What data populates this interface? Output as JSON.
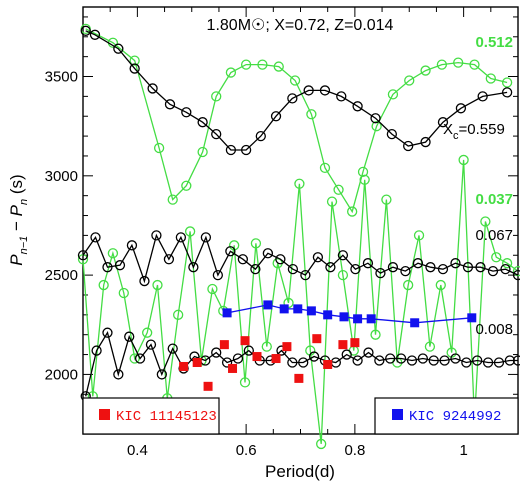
{
  "chart_data": {
    "type": "line",
    "title": "1.80M☉; X=0.72, Z=0.014",
    "xlabel": "Period(d)",
    "ylabel": "P_{n-1} − P_n (s)",
    "xlim": [
      0.3,
      1.1
    ],
    "ylim": [
      1700,
      3850
    ],
    "xticks": [
      0.4,
      0.6,
      0.8,
      1.0
    ],
    "xtick_labels": [
      "0.4",
      "0.6",
      "0.8",
      "1"
    ],
    "yticks": [
      2000,
      2500,
      3000,
      3500
    ],
    "ytick_labels": [
      "2000",
      "2500",
      "3000",
      "3500"
    ],
    "grid": false,
    "colors": {
      "black": "#000000",
      "green": "#44dd44",
      "red": "#ee1111",
      "blue": "#1111ee"
    },
    "annotations": [
      {
        "text": "0.512",
        "color": "#44dd44",
        "series": "green-upper"
      },
      {
        "text": "X",
        "sub": "c",
        "after": "=0.559",
        "color": "#000000",
        "series": "black-upper"
      },
      {
        "text": "0.037",
        "color": "#44dd44",
        "series": "green-lower"
      },
      {
        "text": "0.067",
        "color": "#000000",
        "series": "black-middle"
      },
      {
        "text": "0.008",
        "color": "#000000",
        "series": "black-lower"
      }
    ],
    "legend": [
      {
        "label": "KIC 11145123",
        "color": "#ee1111",
        "position": "bottom-left"
      },
      {
        "label": "KIC 9244992",
        "color": "#1111ee",
        "position": "bottom-right"
      }
    ],
    "series": [
      {
        "id": "black-upper",
        "color": "#000000",
        "marker": "circle",
        "line": true,
        "x": [
          0.305,
          0.322,
          0.365,
          0.395,
          0.428,
          0.46,
          0.49,
          0.52,
          0.545,
          0.572,
          0.6,
          0.627,
          0.655,
          0.685,
          0.715,
          0.745,
          0.775,
          0.805,
          0.838,
          0.868,
          0.898,
          0.93,
          0.962,
          0.995,
          1.035,
          1.08
        ],
        "y": [
          3730,
          3710,
          3640,
          3540,
          3440,
          3360,
          3320,
          3270,
          3210,
          3130,
          3130,
          3200,
          3300,
          3390,
          3430,
          3430,
          3400,
          3350,
          3290,
          3210,
          3150,
          3170,
          3270,
          3340,
          3400,
          3420
        ]
      },
      {
        "id": "green-upper",
        "color": "#44dd44",
        "marker": "circle",
        "line": true,
        "x": [
          0.305,
          0.355,
          0.395,
          0.44,
          0.465,
          0.49,
          0.52,
          0.545,
          0.572,
          0.6,
          0.63,
          0.66,
          0.69,
          0.72,
          0.745,
          0.77,
          0.795,
          0.815,
          0.84,
          0.87,
          0.9,
          0.93,
          0.96,
          0.99,
          1.02,
          1.05,
          1.08
        ],
        "y": [
          3740,
          3670,
          3580,
          3140,
          2880,
          2950,
          3120,
          3400,
          3520,
          3560,
          3560,
          3550,
          3480,
          3310,
          3040,
          2930,
          2820,
          3020,
          3250,
          3410,
          3480,
          3530,
          3560,
          3570,
          3560,
          3490,
          3470
        ]
      },
      {
        "id": "green-lower",
        "color": "#44dd44",
        "marker": "circle",
        "line": true,
        "x": [
          0.3,
          0.318,
          0.338,
          0.355,
          0.375,
          0.395,
          0.418,
          0.437,
          0.455,
          0.475,
          0.497,
          0.518,
          0.538,
          0.558,
          0.578,
          0.598,
          0.618,
          0.638,
          0.658,
          0.678,
          0.698,
          0.718,
          0.738,
          0.758,
          0.778,
          0.798,
          0.818,
          0.838,
          0.858,
          0.878,
          0.898,
          0.918,
          0.938,
          0.958,
          0.978,
          1.0,
          1.02,
          1.04,
          1.06,
          1.08,
          1.1
        ],
        "y": [
          2580,
          1890,
          2450,
          2610,
          2410,
          2080,
          2210,
          2450,
          1880,
          2300,
          2720,
          2070,
          2430,
          2320,
          2650,
          1960,
          2660,
          2140,
          2560,
          2360,
          2960,
          2120,
          1650,
          2870,
          2500,
          2120,
          2980,
          2200,
          2880,
          2060,
          2450,
          2700,
          2140,
          2450,
          2110,
          3080,
          1770,
          2770,
          2590,
          2560,
          2520
        ]
      },
      {
        "id": "black-middle",
        "color": "#000000",
        "marker": "circle",
        "line": true,
        "x": [
          0.3,
          0.323,
          0.345,
          0.368,
          0.39,
          0.413,
          0.435,
          0.458,
          0.48,
          0.503,
          0.526,
          0.548,
          0.571,
          0.594,
          0.617,
          0.64,
          0.663,
          0.686,
          0.709,
          0.732,
          0.755,
          0.778,
          0.801,
          0.824,
          0.847,
          0.87,
          0.893,
          0.916,
          0.939,
          0.962,
          0.985,
          1.008,
          1.031,
          1.054,
          1.077,
          1.1
        ],
        "y": [
          2600,
          2690,
          2540,
          2550,
          2650,
          2470,
          2700,
          2580,
          2690,
          2540,
          2690,
          2500,
          2620,
          2580,
          2530,
          2610,
          2580,
          2530,
          2500,
          2590,
          2540,
          2600,
          2530,
          2560,
          2510,
          2540,
          2520,
          2560,
          2540,
          2530,
          2560,
          2540,
          2540,
          2520,
          2530,
          2500
        ]
      },
      {
        "id": "black-lower",
        "color": "#000000",
        "marker": "circle",
        "line": true,
        "x": [
          0.305,
          0.325,
          0.345,
          0.365,
          0.385,
          0.405,
          0.425,
          0.445,
          0.465,
          0.485,
          0.505,
          0.525,
          0.545,
          0.565,
          0.585,
          0.605,
          0.625,
          0.645,
          0.665,
          0.685,
          0.705,
          0.725,
          0.745,
          0.765,
          0.785,
          0.805,
          0.825,
          0.845,
          0.865,
          0.885,
          0.905,
          0.925,
          0.945,
          0.965,
          0.985,
          1.005,
          1.025,
          1.045,
          1.065,
          1.085,
          1.1
        ],
        "y": [
          1890,
          2120,
          2210,
          2000,
          2190,
          2080,
          2150,
          2000,
          2130,
          2030,
          2090,
          2070,
          2110,
          2060,
          2080,
          2120,
          2070,
          2070,
          2120,
          2060,
          2060,
          2090,
          2070,
          2060,
          2100,
          2070,
          2110,
          2070,
          2080,
          2080,
          2070,
          2080,
          2070,
          2070,
          2080,
          2060,
          2070,
          2060,
          2060,
          2070,
          2070
        ]
      },
      {
        "id": "kic-9244992",
        "name": "KIC 9244992",
        "color": "#1111ee",
        "marker": "square",
        "line": true,
        "x": [
          0.565,
          0.64,
          0.67,
          0.695,
          0.72,
          0.75,
          0.78,
          0.805,
          0.83,
          0.91,
          1.015
        ],
        "y": [
          2310,
          2350,
          2330,
          2330,
          2320,
          2300,
          2290,
          2280,
          2280,
          2260,
          2285
        ]
      },
      {
        "id": "kic-11145123",
        "name": "KIC 11145123",
        "color": "#ee1111",
        "marker": "square",
        "line": false,
        "x": [
          0.485,
          0.51,
          0.53,
          0.56,
          0.575,
          0.598,
          0.62,
          0.655,
          0.675,
          0.697,
          0.73,
          0.75,
          0.778,
          0.8
        ],
        "y": [
          2040,
          2060,
          1940,
          2150,
          2030,
          2170,
          2090,
          2080,
          2140,
          1980,
          2180,
          2050,
          2150,
          2160
        ]
      }
    ]
  }
}
